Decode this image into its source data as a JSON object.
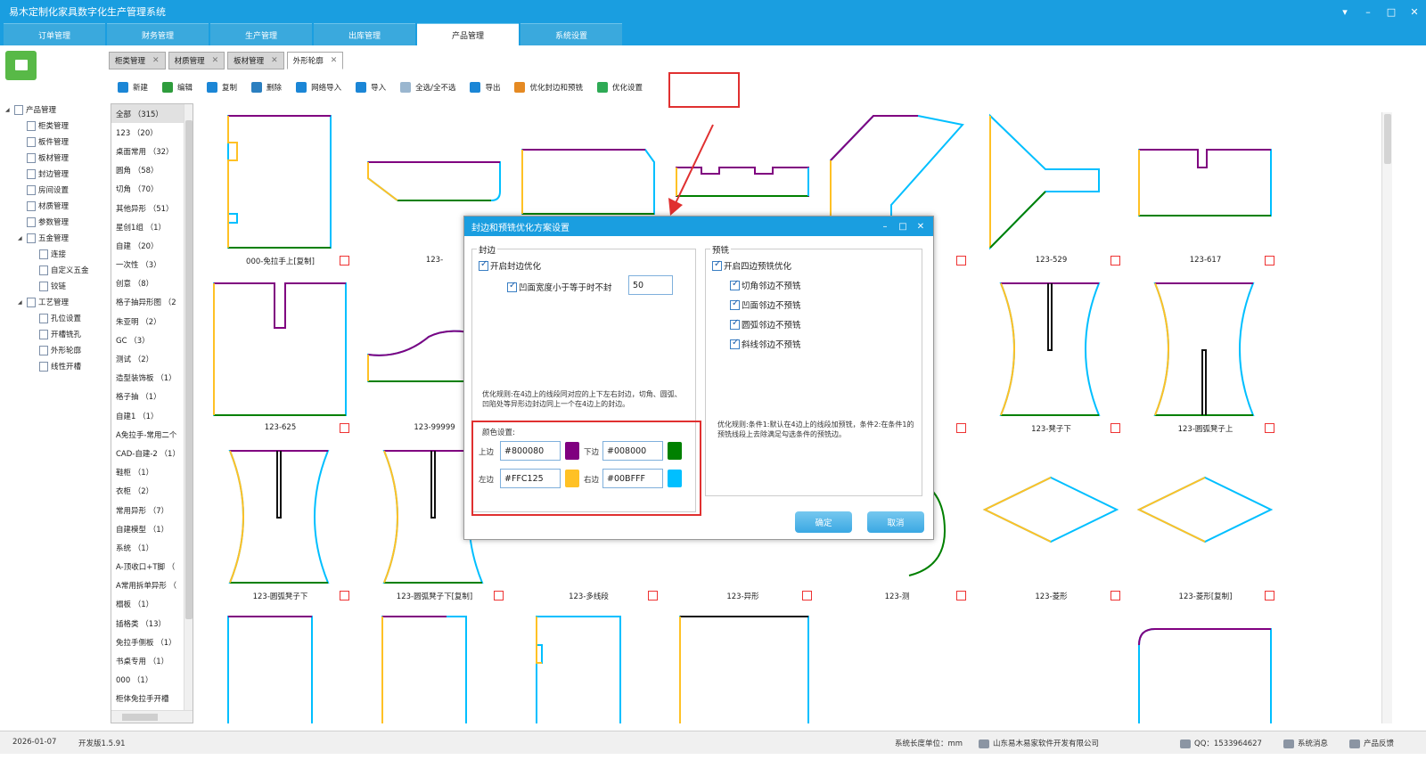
{
  "app": {
    "title": "易木定制化家具数字化生产管理系统"
  },
  "nav_tabs": [
    {
      "label": "订单管理",
      "active": false
    },
    {
      "label": "财务管理",
      "active": false
    },
    {
      "label": "生产管理",
      "active": false
    },
    {
      "label": "出库管理",
      "active": false
    },
    {
      "label": "产品管理",
      "active": true
    },
    {
      "label": "系统设置",
      "active": false
    }
  ],
  "doc_tabs": [
    {
      "label": "柜类管理",
      "active": false
    },
    {
      "label": "材质管理",
      "active": false
    },
    {
      "label": "板材管理",
      "active": false
    },
    {
      "label": "外形轮廓",
      "active": true
    }
  ],
  "toolbar": [
    {
      "label": "新建",
      "icon": "new-icon",
      "color": "#1b86d6"
    },
    {
      "label": "编辑",
      "icon": "edit-icon",
      "color": "#2e9c3c"
    },
    {
      "label": "复制",
      "icon": "copy-icon",
      "color": "#1b86d6"
    },
    {
      "label": "删除",
      "icon": "delete-icon",
      "color": "#2b7fc0"
    },
    {
      "label": "网络导入",
      "icon": "cloud-import-icon",
      "color": "#1b86d6"
    },
    {
      "label": "导入",
      "icon": "import-icon",
      "color": "#1b86d6"
    },
    {
      "label": "全选/全不选",
      "icon": "check-all-icon",
      "color": "#9ab6cf"
    },
    {
      "label": "导出",
      "icon": "export-icon",
      "color": "#1b86d6"
    },
    {
      "label": "优化封边和预铣",
      "icon": "tools-icon",
      "color": "#e58a23"
    },
    {
      "label": "优化设置",
      "icon": "gear-icon",
      "color": "#2eaa55"
    }
  ],
  "tree": [
    {
      "label": "产品管理",
      "level": 0,
      "expander": "◢"
    },
    {
      "label": "柜类管理",
      "level": 1
    },
    {
      "label": "板件管理",
      "level": 1
    },
    {
      "label": "板材管理",
      "level": 1
    },
    {
      "label": "封边管理",
      "level": 1
    },
    {
      "label": "房间设置",
      "level": 1
    },
    {
      "label": "材质管理",
      "level": 1
    },
    {
      "label": "参数管理",
      "level": 1
    },
    {
      "label": "五金管理",
      "level": 1,
      "expander": "◢"
    },
    {
      "label": "连接",
      "level": 2
    },
    {
      "label": "自定义五金",
      "level": 2
    },
    {
      "label": "铰链",
      "level": 2
    },
    {
      "label": "工艺管理",
      "level": 1,
      "expander": "◢"
    },
    {
      "label": "孔位设置",
      "level": 2
    },
    {
      "label": "开槽铣孔",
      "level": 2
    },
    {
      "label": "外形轮廓",
      "level": 2
    },
    {
      "label": "线性开槽",
      "level": 2
    }
  ],
  "categories": [
    "全部 （315）",
    "123 （20）",
    "桌面常用 （32）",
    "圆角 （58）",
    "切角 （70）",
    "其他异形 （51）",
    "星创1组 （1）",
    "自建 （20）",
    "一次性 （3）",
    "创意 （8）",
    "格子抽异形图 （2",
    "朱亚明 （2）",
    "GC （3）",
    "测试 （2）",
    "造型装饰板 （1）",
    "格子抽 （1）",
    "自建1 （1）",
    "A免拉手-常用二个",
    "CAD-自建-2 （1）",
    "鞋柜 （1）",
    "衣柜 （2）",
    "常用异形 （7）",
    "自建模型 （1）",
    "系统 （1）",
    "A-顶收口+T脚 （",
    "A常用拆单异形 （",
    "榻板 （1）",
    "插格类 （13）",
    "免拉手侧板 （1）",
    "书桌专用 （1）",
    "000 （1）",
    "柜体免拉手开槽"
  ],
  "gallery": [
    "000-免拉手上[复制]",
    "123-",
    "",
    "",
    "",
    "123-529",
    "123-617",
    "123-625",
    "123-99999",
    "",
    "",
    "",
    "123-凳子下",
    "123-圆弧凳子上",
    "123-圆弧凳子下",
    "123-圆弧凳子下[复制]",
    "123-多线段",
    "123-异形",
    "123-测",
    "123-菱形",
    "123-菱形[复制]"
  ],
  "dialog": {
    "title": "封边和预铣优化方案设置",
    "edge_group": "封边",
    "enable_edge": "开启封边优化",
    "concave_rule": "凹面宽度小于等于时不封",
    "concave_value": "50",
    "edge_rule": "优化规则:在4边上的线段同对应的上下左右封边，切角、圆弧、凹陷处等异形边封边同上一个在4边上的封边。",
    "color_settings": "颜色设置:",
    "top_label": "上边",
    "top_color": "#800080",
    "bottom_label": "下边",
    "bottom_color": "#008000",
    "left_label": "左边",
    "left_color": "#FFC125",
    "right_label": "右边",
    "right_color": "#00BFFF",
    "mill_group": "预铣",
    "enable_mill": "开启四边预铣优化",
    "mill_opts": [
      "切角邻边不预铣",
      "凹面邻边不预铣",
      "圆弧邻边不预铣",
      "斜线邻边不预铣"
    ],
    "mill_rule": "优化规则:条件1:默认在4边上的线段加预铣，条件2:在条件1的预铣线段上去除满足勾选条件的预铣边。",
    "ok": "确定",
    "cancel": "取消"
  },
  "status": {
    "date": "2026-01-07",
    "version": "开发版1.5.91",
    "unit": "系统长度单位：mm",
    "company": "山东易木易家软件开发有限公司",
    "qq": "QQ：1533964627",
    "messages": "系统消息",
    "feedback": "产品反馈"
  },
  "colors": {
    "accent": "#1a9ee0",
    "highlight": "#e03030",
    "top": "#800080",
    "bottom": "#008000",
    "left": "#FFC125",
    "right": "#00BFFF"
  }
}
